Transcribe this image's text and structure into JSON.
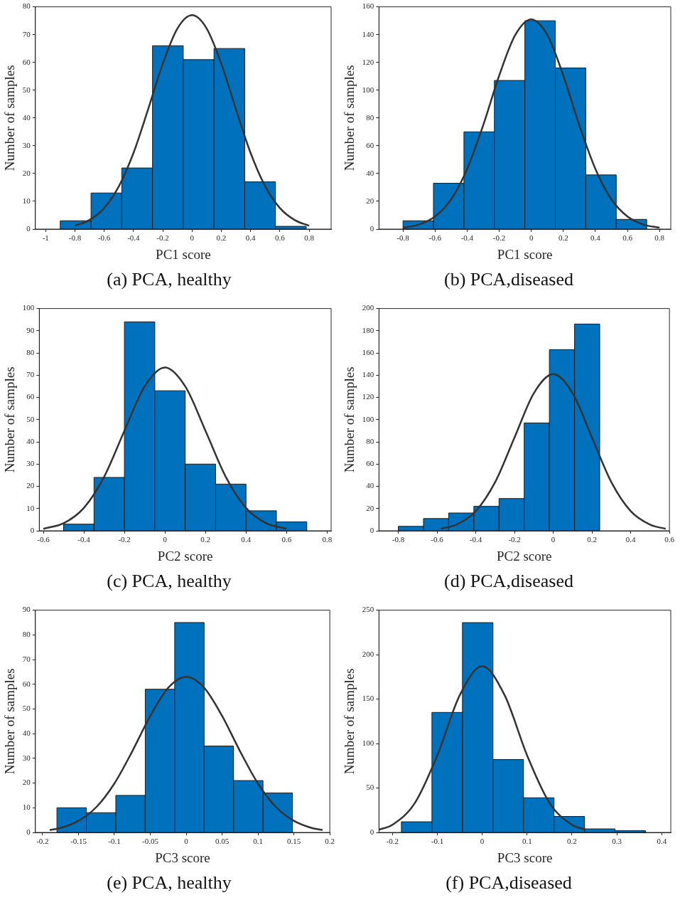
{
  "chart_data": [
    {
      "type": "histogram",
      "title": "(a) PCA, healthy",
      "xlabel": "PC1 score",
      "ylabel": "Number of samples",
      "marker": "none",
      "xlim": [
        -1.07,
        0.95
      ],
      "xticks": [
        -1,
        -0.8,
        -0.6,
        -0.4,
        -0.2,
        0,
        0.2,
        0.4,
        0.6,
        0.8
      ],
      "ylim": [
        0,
        80
      ],
      "yticks": [
        0,
        10,
        20,
        30,
        40,
        50,
        60,
        70,
        80
      ],
      "series": [
        {
          "type": "histogram",
          "color": "#0072bd",
          "bins": [
            -0.9,
            -0.69,
            -0.48,
            -0.27,
            -0.06,
            0.15,
            0.36,
            0.57,
            0.78
          ],
          "values": [
            3,
            13,
            22,
            66,
            61,
            65,
            17,
            1
          ]
        },
        {
          "type": "line",
          "color": "#333333",
          "x": [
            -0.8,
            -0.7,
            -0.6,
            -0.5,
            -0.4,
            -0.3,
            -0.2,
            -0.1,
            0,
            0.1,
            0.2,
            0.3,
            0.4,
            0.5,
            0.6,
            0.7,
            0.8
          ],
          "values": [
            1.2,
            3.3,
            7.6,
            15.4,
            27.4,
            43.1,
            59.5,
            72.2,
            77,
            72.2,
            59.5,
            43.1,
            27.4,
            15.4,
            7.6,
            3.3,
            1.2
          ]
        }
      ]
    },
    {
      "type": "histogram",
      "title": "(b) PCA,diseased",
      "xlabel": "PC1 score",
      "ylabel": "Number of samples",
      "marker": "none",
      "xlim": [
        -0.95,
        0.87
      ],
      "xticks": [
        -0.8,
        -0.6,
        -0.4,
        -0.2,
        0,
        0.2,
        0.4,
        0.6,
        0.8
      ],
      "ylim": [
        0,
        160
      ],
      "yticks": [
        0,
        20,
        40,
        60,
        80,
        100,
        120,
        140,
        160
      ],
      "series": [
        {
          "type": "histogram",
          "color": "#0072bd",
          "bins": [
            -0.8,
            -0.61,
            -0.42,
            -0.23,
            -0.04,
            0.15,
            0.34,
            0.53,
            0.72
          ],
          "values": [
            6,
            33,
            70,
            107,
            150,
            116,
            39,
            7
          ]
        },
        {
          "type": "line",
          "color": "#333333",
          "x": [
            -0.8,
            -0.7,
            -0.6,
            -0.5,
            -0.4,
            -0.3,
            -0.2,
            -0.1,
            0,
            0.1,
            0.2,
            0.3,
            0.4,
            0.5,
            0.6,
            0.7,
            0.8
          ],
          "values": [
            1,
            3.3,
            9.1,
            21.4,
            43.3,
            74.7,
            110.5,
            139.7,
            151,
            139.7,
            110.5,
            74.7,
            43.3,
            21.4,
            9.1,
            3.3,
            1
          ]
        }
      ]
    },
    {
      "type": "histogram",
      "title": "(c) PCA, healthy",
      "xlabel": "PC2 score",
      "ylabel": "Number of samples",
      "marker": "none",
      "xlim": [
        -0.62,
        0.82
      ],
      "xticks": [
        -0.6,
        -0.4,
        -0.2,
        0,
        0.2,
        0.4,
        0.6,
        0.8
      ],
      "ylim": [
        0,
        100
      ],
      "yticks": [
        0,
        10,
        20,
        30,
        40,
        50,
        60,
        70,
        80,
        90,
        100
      ],
      "series": [
        {
          "type": "histogram",
          "color": "#0072bd",
          "bins": [
            -0.5,
            -0.35,
            -0.2,
            -0.05,
            0.1,
            0.25,
            0.4,
            0.55,
            0.7
          ],
          "values": [
            3,
            24,
            94,
            63,
            30,
            21,
            9,
            4
          ]
        },
        {
          "type": "line",
          "color": "#333333",
          "x": [
            -0.6,
            -0.5,
            -0.4,
            -0.3,
            -0.2,
            -0.1,
            0,
            0.1,
            0.2,
            0.3,
            0.4,
            0.5,
            0.6
          ],
          "values": [
            0.9,
            3.4,
            10.3,
            24.3,
            45,
            65,
            73.5,
            65,
            45,
            24.3,
            10.3,
            3.4,
            0.9
          ]
        }
      ]
    },
    {
      "type": "histogram",
      "title": "(d) PCA,diseased",
      "xlabel": "PC2 score",
      "ylabel": "Number of samples",
      "marker": "none",
      "xlim": [
        -0.9,
        0.6
      ],
      "xticks": [
        -0.8,
        -0.6,
        -0.4,
        -0.2,
        0,
        0.2,
        0.4,
        0.6
      ],
      "ylim": [
        0,
        200
      ],
      "yticks": [
        0,
        20,
        40,
        60,
        80,
        100,
        120,
        140,
        160,
        180,
        200
      ],
      "series": [
        {
          "type": "histogram",
          "color": "#0072bd",
          "bins": [
            -0.8,
            -0.67,
            -0.54,
            -0.41,
            -0.28,
            -0.15,
            -0.02,
            0.11,
            0.24
          ],
          "values": [
            4,
            11,
            16,
            22,
            29,
            97,
            163,
            186
          ]
        },
        {
          "type": "line",
          "color": "#333333",
          "x": [
            -0.58,
            -0.5,
            -0.4,
            -0.3,
            -0.2,
            -0.1,
            0,
            0.1,
            0.2,
            0.3,
            0.4,
            0.5,
            0.58
          ],
          "values": [
            1.8,
            5.5,
            17.7,
            43.8,
            83.9,
            123.8,
            141,
            123.8,
            83.9,
            43.8,
            17.7,
            5.5,
            1.8
          ]
        }
      ]
    },
    {
      "type": "histogram",
      "title": "(e) PCA, healthy",
      "xlabel": "PC3 score",
      "ylabel": "Number of samples",
      "marker": "none",
      "xlim": [
        -0.21,
        0.2
      ],
      "xticks": [
        -0.2,
        -0.15,
        -0.1,
        -0.05,
        0,
        0.05,
        0.1,
        0.15,
        0.2
      ],
      "ylim": [
        0,
        90
      ],
      "yticks": [
        0,
        10,
        20,
        30,
        40,
        50,
        60,
        70,
        80,
        90
      ],
      "series": [
        {
          "type": "histogram",
          "color": "#0072bd",
          "bins": [
            -0.18,
            -0.139,
            -0.098,
            -0.057,
            -0.016,
            0.025,
            0.066,
            0.107,
            0.148
          ],
          "values": [
            10,
            8,
            15,
            58,
            85,
            35,
            21,
            16
          ]
        },
        {
          "type": "line",
          "color": "#333333",
          "x": [
            -0.19,
            -0.175,
            -0.15,
            -0.125,
            -0.1,
            -0.075,
            -0.05,
            -0.025,
            0,
            0.025,
            0.05,
            0.075,
            0.1,
            0.125,
            0.15,
            0.175,
            0.19
          ],
          "values": [
            1,
            1.8,
            4.7,
            10.3,
            19.8,
            32.9,
            47.2,
            58.6,
            63,
            58.6,
            47.2,
            32.9,
            19.8,
            10.3,
            4.7,
            1.8,
            1
          ]
        }
      ]
    },
    {
      "type": "histogram",
      "title": "(f) PCA,diseased",
      "xlabel": "PC3 score",
      "ylabel": "Number of samples",
      "marker": "none",
      "xlim": [
        -0.23,
        0.42
      ],
      "xticks": [
        -0.2,
        -0.1,
        0,
        0.1,
        0.2,
        0.3,
        0.4
      ],
      "ylim": [
        0,
        250
      ],
      "yticks": [
        0,
        50,
        100,
        150,
        200,
        250
      ],
      "series": [
        {
          "type": "histogram",
          "color": "#0072bd",
          "bins": [
            -0.18,
            -0.112,
            -0.044,
            0.024,
            0.092,
            0.16,
            0.228,
            0.296,
            0.364
          ],
          "values": [
            12,
            135,
            236,
            82,
            39,
            18,
            4,
            2
          ]
        },
        {
          "type": "line",
          "color": "#333333",
          "x": [
            -0.23,
            -0.2,
            -0.15,
            -0.1,
            -0.05,
            0,
            0.05,
            0.1,
            0.15,
            0.2,
            0.23
          ],
          "values": [
            3.2,
            8.6,
            33.1,
            86.7,
            154.3,
            187,
            154.3,
            86.7,
            33.1,
            8.6,
            3.2
          ]
        }
      ]
    }
  ]
}
